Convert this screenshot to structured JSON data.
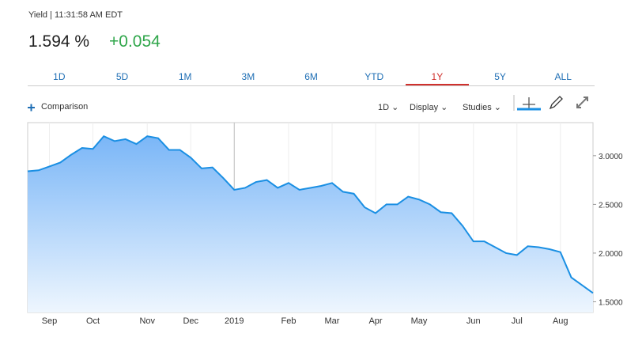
{
  "header": {
    "label": "Yield | 11:31:58 AM EDT",
    "price": "1.594 %",
    "change": "+0.054"
  },
  "tabs": {
    "items": [
      "1D",
      "5D",
      "1M",
      "3M",
      "6M",
      "YTD",
      "1Y",
      "5Y",
      "ALL"
    ],
    "active": 6
  },
  "toolbar": {
    "comparison": "Comparison",
    "interval": "1D",
    "display": "Display",
    "studies": "Studies"
  },
  "chart_data": {
    "type": "area",
    "color": "#1a8fe3",
    "categories": [
      null,
      null,
      "Sep",
      null,
      null,
      null,
      "Oct",
      null,
      null,
      null,
      null,
      "Nov",
      null,
      null,
      null,
      "Dec",
      null,
      null,
      null,
      "2019",
      null,
      null,
      null,
      null,
      "Feb",
      null,
      null,
      null,
      "Mar",
      null,
      null,
      null,
      "Apr",
      null,
      null,
      null,
      "May",
      null,
      null,
      null,
      null,
      "Jun",
      null,
      null,
      null,
      "Jul",
      null,
      null,
      null,
      "Aug",
      null,
      null,
      null
    ],
    "values": [
      2.84,
      2.85,
      2.89,
      2.93,
      3.01,
      3.08,
      3.07,
      3.2,
      3.15,
      3.17,
      3.12,
      3.2,
      3.18,
      3.06,
      3.06,
      2.98,
      2.87,
      2.88,
      2.77,
      2.65,
      2.67,
      2.73,
      2.75,
      2.67,
      2.72,
      2.65,
      2.67,
      2.69,
      2.72,
      2.63,
      2.61,
      2.47,
      2.41,
      2.5,
      2.5,
      2.58,
      2.55,
      2.5,
      2.42,
      2.41,
      2.28,
      2.12,
      2.12,
      2.06,
      2.0,
      1.98,
      2.07,
      2.06,
      2.04,
      2.01,
      1.75,
      1.67,
      1.59
    ],
    "ylim": [
      1.39,
      3.34
    ],
    "yticks": [
      {
        "value": 1.5,
        "label": "1.5000"
      },
      {
        "value": 2,
        "label": "2.0000"
      },
      {
        "value": 2.5,
        "label": "2.5000"
      },
      {
        "value": 3,
        "label": "3.0000"
      }
    ],
    "grid": true
  }
}
